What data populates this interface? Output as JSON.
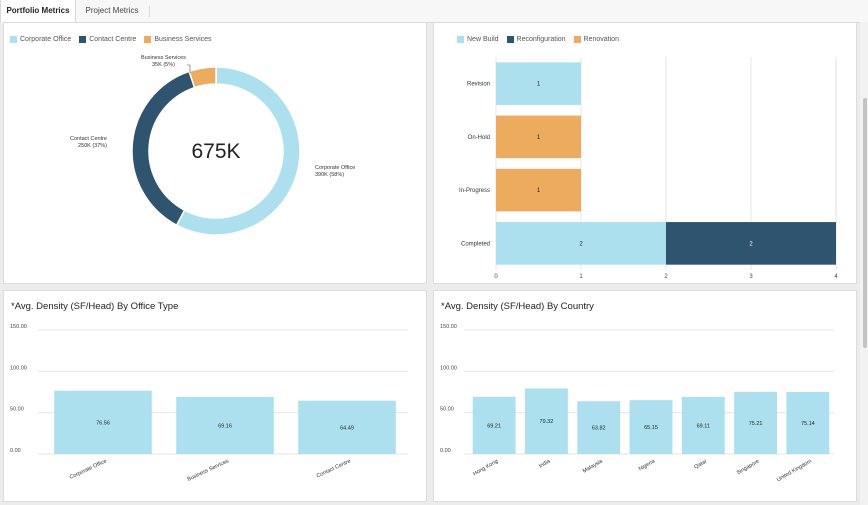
{
  "tabs": [
    {
      "label": "Portfolio Metrics",
      "active": true
    },
    {
      "label": "Project Metrics",
      "active": false
    }
  ],
  "colors": {
    "light_blue": "#ade0ef",
    "dark_blue": "#2e5470",
    "orange": "#edab5e",
    "grid": "#e6e6e6"
  },
  "donut": {
    "legend": [
      "Corporate Office",
      "Contact Centre",
      "Business Services"
    ],
    "center_label": "675K",
    "chart_data": {
      "type": "pie",
      "categories": [
        "Corporate Office",
        "Contact Centre",
        "Business Services"
      ],
      "values": [
        390,
        250,
        35
      ],
      "labels": [
        "390K (58%)",
        "250K (37%)",
        "35K (5%)"
      ],
      "total_label": "675K",
      "legend": "top-left"
    }
  },
  "status_chart": {
    "legend": [
      "New Build",
      "Reconfiguration",
      "Renovation"
    ],
    "chart_data": {
      "type": "bar",
      "orientation": "horizontal",
      "stacked": true,
      "categories": [
        "Revision",
        "On-Hold",
        "In-Progress",
        "Completed"
      ],
      "series": [
        {
          "name": "New Build",
          "values": [
            1,
            0,
            0,
            2
          ]
        },
        {
          "name": "Reconfiguration",
          "values": [
            0,
            0,
            0,
            2
          ]
        },
        {
          "name": "Renovation",
          "values": [
            0,
            1,
            1,
            0
          ]
        }
      ],
      "x_ticks": [
        "0",
        "1",
        "2",
        "3",
        "4"
      ],
      "xlim": [
        0,
        4
      ],
      "grid": true,
      "legend": "top-left"
    }
  },
  "office_density": {
    "title": "*Avg. Density (SF/Head) By Office Type",
    "chart_data": {
      "type": "bar",
      "categories": [
        "Corporate Office",
        "Business Services",
        "Contact Centre"
      ],
      "values": [
        76.56,
        69.16,
        64.49
      ],
      "value_labels": [
        "76.56",
        "69.16",
        "64.49"
      ],
      "y_ticks": [
        "0.00",
        "50.00",
        "100.00",
        "150.00"
      ],
      "ylim": [
        0,
        150
      ],
      "grid": true
    }
  },
  "country_density": {
    "title": "*Avg. Density (SF/Head) By Country",
    "chart_data": {
      "type": "bar",
      "categories": [
        "Hong Kong",
        "India",
        "Malaysia",
        "Nigeria",
        "Qatar",
        "Singapore",
        "United Kingdom"
      ],
      "values": [
        69.21,
        79.32,
        63.82,
        65.15,
        69.11,
        75.21,
        75.14
      ],
      "value_labels": [
        "69.21",
        "79.32",
        "63.82",
        "65.15",
        "69.11",
        "75.21",
        "75.14"
      ],
      "y_ticks": [
        "0.00",
        "50.00",
        "100.00",
        "150.00"
      ],
      "ylim": [
        0,
        150
      ],
      "grid": true
    }
  }
}
